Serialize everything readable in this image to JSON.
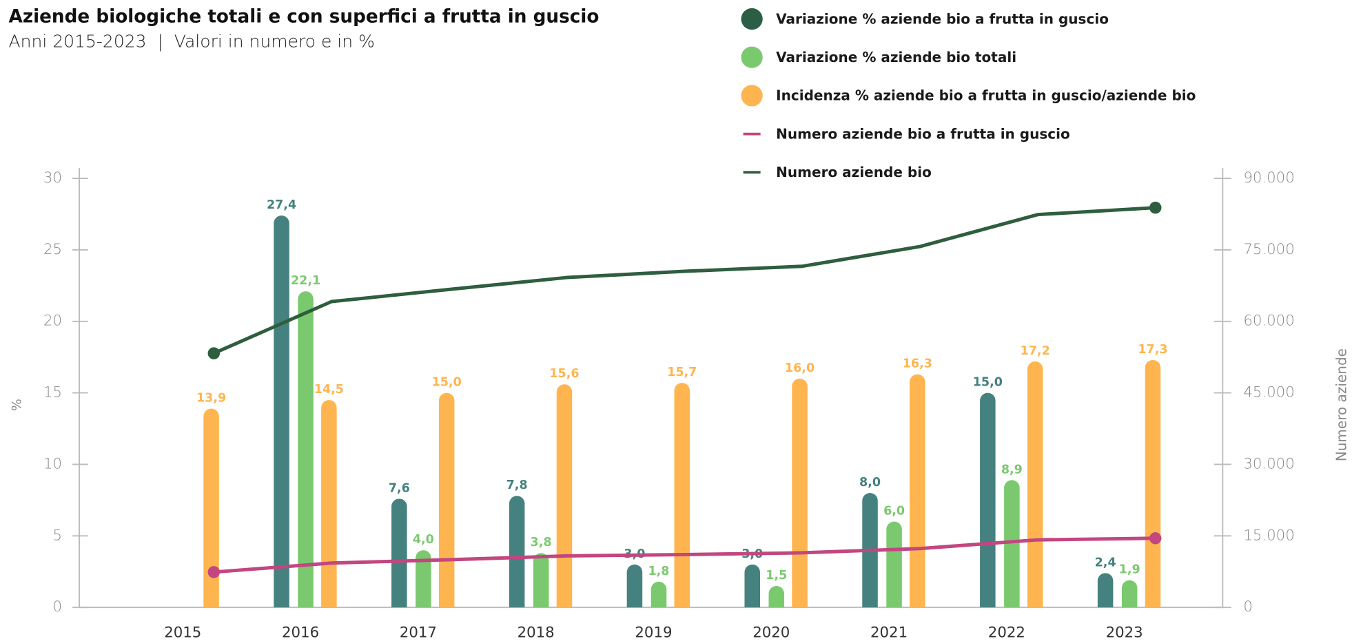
{
  "chart_data": {
    "type": "bar",
    "title": "Aziende biologiche totali e con superfici a frutta in guscio",
    "subtitle": "Anni 2015-2023  |  Valori in numero e in %",
    "ylabel": "%",
    "y2label": "Numero aziende",
    "categories": [
      "2015",
      "2016",
      "2017",
      "2018",
      "2019",
      "2020",
      "2021",
      "2022",
      "2023"
    ],
    "ylim": [
      0,
      30
    ],
    "yticks": [
      0,
      5,
      10,
      15,
      20,
      25,
      30
    ],
    "y2lim": [
      0,
      90000
    ],
    "y2ticks": [
      {
        "value": 0,
        "label": "0"
      },
      {
        "value": 15000,
        "label": "15.000"
      },
      {
        "value": 30000,
        "label": "30.000"
      },
      {
        "value": 45000,
        "label": "45.000"
      },
      {
        "value": 60000,
        "label": "60.000"
      },
      {
        "value": 75000,
        "label": "75.000"
      },
      {
        "value": 90000,
        "label": "90.000"
      }
    ],
    "series": [
      {
        "name": "Variazione % aziende bio a frutta in guscio",
        "type": "bar",
        "color": "#45817f",
        "legend_color": "#2b5e45",
        "values": [
          null,
          27.4,
          7.6,
          7.8,
          3.0,
          3.0,
          8.0,
          15.0,
          2.4
        ],
        "value_labels": [
          null,
          "27,4",
          "7,6",
          "7,8",
          "3,0",
          "3,0",
          "8,0",
          "15,0",
          "2,4"
        ]
      },
      {
        "name": "Variazione % aziende bio totali",
        "type": "bar",
        "color": "#7bc96f",
        "legend_color": "#7bc96f",
        "values": [
          null,
          22.1,
          4.0,
          3.8,
          1.8,
          1.5,
          6.0,
          8.9,
          1.9
        ],
        "value_labels": [
          null,
          "22,1",
          "4,0",
          "3,8",
          "1,8",
          "1,5",
          "6,0",
          "8,9",
          "1,9"
        ]
      },
      {
        "name": "Incidenza % aziende bio a frutta in guscio/aziende bio",
        "type": "bar",
        "color": "#ffb54f",
        "legend_color": "#ffb54f",
        "values": [
          13.9,
          14.5,
          15.0,
          15.6,
          15.7,
          16.0,
          16.3,
          17.2,
          17.3
        ],
        "value_labels": [
          "13,9",
          "14,5",
          "15,0",
          "15,6",
          "15,7",
          "16,0",
          "16,3",
          "17,2",
          "17,3"
        ]
      },
      {
        "name": "Numero aziende bio a frutta in guscio",
        "type": "line",
        "axis": "y2",
        "color": "#c2467f",
        "legend_color": "#c2467f",
        "values": [
          7400,
          9300,
          10000,
          10800,
          11070,
          11450,
          12340,
          14170,
          14500
        ]
      },
      {
        "name": "Numero aziende bio",
        "type": "line",
        "axis": "y2",
        "color": "#2e5e3e",
        "legend_color": "#2e5e3e",
        "values": [
          53300,
          64150,
          66700,
          69200,
          70500,
          71560,
          75700,
          82400,
          83850
        ]
      }
    ]
  }
}
